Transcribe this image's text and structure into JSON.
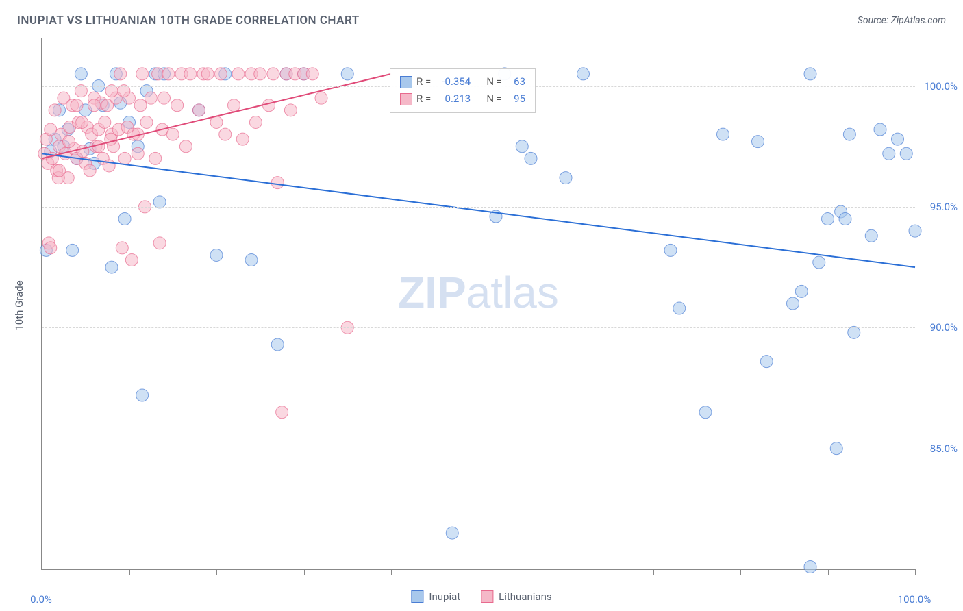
{
  "title": "INUPIAT VS LITHUANIAN 10TH GRADE CORRELATION CHART",
  "source_label": "Source: ZipAtlas.com",
  "ylabel": "10th Grade",
  "watermark": {
    "bold": "ZIP",
    "rest": "atlas"
  },
  "chart": {
    "type": "scatter",
    "background_color": "#ffffff",
    "grid_color": "#d8d8d8",
    "axis_color": "#888888",
    "xlim": [
      0,
      100
    ],
    "ylim": [
      80,
      102
    ],
    "x_ticks": [
      0,
      10,
      20,
      30,
      40,
      50,
      60,
      70,
      80,
      90,
      100
    ],
    "y_gridlines": [
      85,
      90,
      95,
      100
    ],
    "y_tick_labels": [
      "85.0%",
      "90.0%",
      "95.0%",
      "100.0%"
    ],
    "x_axis_labels": {
      "left": "0.0%",
      "right": "100.0%"
    },
    "marker_radius": 9,
    "marker_opacity": 0.55,
    "series": [
      {
        "name": "Inupiat",
        "fill_color": "#a8c8ec",
        "stroke_color": "#4a7dd4",
        "r_value": "-0.354",
        "n_value": "63",
        "trend": {
          "x1": 0,
          "y1": 97.2,
          "x2": 100,
          "y2": 92.5,
          "color": "#2b6fd6",
          "width": 2
        },
        "points": [
          [
            0.5,
            93.2
          ],
          [
            1,
            97.3
          ],
          [
            1.5,
            97.8
          ],
          [
            2,
            99.0
          ],
          [
            2.5,
            97.5
          ],
          [
            3,
            98.2
          ],
          [
            3.5,
            93.2
          ],
          [
            4,
            97.0
          ],
          [
            4.5,
            100.5
          ],
          [
            5,
            99.0
          ],
          [
            5.5,
            97.4
          ],
          [
            6,
            96.8
          ],
          [
            6.5,
            100.0
          ],
          [
            7,
            99.2
          ],
          [
            8,
            92.5
          ],
          [
            8.5,
            100.5
          ],
          [
            9,
            99.3
          ],
          [
            9.5,
            94.5
          ],
          [
            10,
            98.5
          ],
          [
            11,
            97.5
          ],
          [
            11.5,
            87.2
          ],
          [
            12,
            99.8
          ],
          [
            13,
            100.5
          ],
          [
            13.5,
            95.2
          ],
          [
            14,
            100.5
          ],
          [
            18,
            99.0
          ],
          [
            20,
            93.0
          ],
          [
            21,
            100.5
          ],
          [
            24,
            92.8
          ],
          [
            27,
            89.3
          ],
          [
            28,
            100.5
          ],
          [
            30,
            100.5
          ],
          [
            35,
            100.5
          ],
          [
            47,
            81.5
          ],
          [
            52,
            94.6
          ],
          [
            53,
            100.5
          ],
          [
            55,
            97.5
          ],
          [
            56,
            97.0
          ],
          [
            60,
            96.2
          ],
          [
            62,
            100.5
          ],
          [
            72,
            93.2
          ],
          [
            73,
            90.8
          ],
          [
            76,
            86.5
          ],
          [
            78,
            98.0
          ],
          [
            82,
            97.7
          ],
          [
            83,
            88.6
          ],
          [
            86,
            91.0
          ],
          [
            87,
            91.5
          ],
          [
            88,
            100.5
          ],
          [
            89,
            92.7
          ],
          [
            90,
            94.5
          ],
          [
            91,
            85.0
          ],
          [
            91.5,
            94.8
          ],
          [
            92,
            94.5
          ],
          [
            92.5,
            98.0
          ],
          [
            93,
            89.8
          ],
          [
            95,
            93.8
          ],
          [
            96,
            98.2
          ],
          [
            97,
            97.2
          ],
          [
            98,
            97.8
          ],
          [
            99,
            97.2
          ],
          [
            100,
            94.0
          ],
          [
            88,
            80.1
          ]
        ]
      },
      {
        "name": "Lithuanians",
        "fill_color": "#f5b8c8",
        "stroke_color": "#e86a8e",
        "r_value": "0.213",
        "n_value": "95",
        "trend": {
          "x1": 0,
          "y1": 97.0,
          "x2": 40,
          "y2": 100.5,
          "color": "#e04a78",
          "width": 2
        },
        "points": [
          [
            0.3,
            97.2
          ],
          [
            0.5,
            97.8
          ],
          [
            0.7,
            96.8
          ],
          [
            1,
            98.2
          ],
          [
            1.2,
            97.0
          ],
          [
            1.5,
            99.0
          ],
          [
            1.7,
            96.5
          ],
          [
            2,
            97.5
          ],
          [
            2.2,
            98.0
          ],
          [
            2.5,
            99.5
          ],
          [
            2.7,
            97.2
          ],
          [
            3,
            96.2
          ],
          [
            3.2,
            98.3
          ],
          [
            3.5,
            99.2
          ],
          [
            3.7,
            97.4
          ],
          [
            4,
            97.0
          ],
          [
            4.2,
            98.5
          ],
          [
            4.5,
            99.8
          ],
          [
            4.7,
            97.3
          ],
          [
            5,
            96.8
          ],
          [
            5.2,
            98.3
          ],
          [
            5.5,
            96.5
          ],
          [
            5.7,
            98.0
          ],
          [
            6,
            99.5
          ],
          [
            6.2,
            97.5
          ],
          [
            6.5,
            98.2
          ],
          [
            6.8,
            99.3
          ],
          [
            7,
            97.0
          ],
          [
            7.2,
            98.5
          ],
          [
            7.5,
            99.2
          ],
          [
            7.7,
            96.7
          ],
          [
            8,
            98.0
          ],
          [
            8.2,
            97.5
          ],
          [
            8.5,
            99.5
          ],
          [
            8.8,
            98.2
          ],
          [
            9,
            100.5
          ],
          [
            9.2,
            93.3
          ],
          [
            9.5,
            97.0
          ],
          [
            9.8,
            98.3
          ],
          [
            10,
            99.5
          ],
          [
            10.3,
            92.8
          ],
          [
            10.5,
            98.0
          ],
          [
            11,
            97.2
          ],
          [
            11.3,
            99.2
          ],
          [
            11.5,
            100.5
          ],
          [
            11.8,
            95.0
          ],
          [
            12,
            98.5
          ],
          [
            12.5,
            99.5
          ],
          [
            13,
            97.0
          ],
          [
            13.3,
            100.5
          ],
          [
            13.5,
            93.5
          ],
          [
            13.8,
            98.2
          ],
          [
            14,
            99.5
          ],
          [
            14.5,
            100.5
          ],
          [
            15,
            98.0
          ],
          [
            15.5,
            99.2
          ],
          [
            16,
            100.5
          ],
          [
            16.5,
            97.5
          ],
          [
            17,
            100.5
          ],
          [
            18,
            99.0
          ],
          [
            18.5,
            100.5
          ],
          [
            19,
            100.5
          ],
          [
            20,
            98.5
          ],
          [
            20.5,
            100.5
          ],
          [
            21,
            98.0
          ],
          [
            22,
            99.2
          ],
          [
            22.5,
            100.5
          ],
          [
            23,
            97.8
          ],
          [
            24,
            100.5
          ],
          [
            24.5,
            98.5
          ],
          [
            25,
            100.5
          ],
          [
            26,
            99.2
          ],
          [
            26.5,
            100.5
          ],
          [
            27,
            96.0
          ],
          [
            28,
            100.5
          ],
          [
            28.5,
            99.0
          ],
          [
            29,
            100.5
          ],
          [
            30,
            100.5
          ],
          [
            31,
            100.5
          ],
          [
            32,
            99.5
          ],
          [
            27.5,
            86.5
          ],
          [
            35,
            90.0
          ],
          [
            0.8,
            93.5
          ],
          [
            1.9,
            96.2
          ],
          [
            3.1,
            97.7
          ],
          [
            4.6,
            98.5
          ],
          [
            6.0,
            99.2
          ],
          [
            7.9,
            97.8
          ],
          [
            9.4,
            99.8
          ],
          [
            2.0,
            96.5
          ],
          [
            4.0,
            99.2
          ],
          [
            6.5,
            97.5
          ],
          [
            8.0,
            99.8
          ],
          [
            11.0,
            98.0
          ],
          [
            1.0,
            93.3
          ]
        ]
      }
    ]
  },
  "legend_stats": {
    "label_r": "R =",
    "label_n": "N ="
  },
  "bottom_legend": [
    "Inupiat",
    "Lithuanians"
  ]
}
